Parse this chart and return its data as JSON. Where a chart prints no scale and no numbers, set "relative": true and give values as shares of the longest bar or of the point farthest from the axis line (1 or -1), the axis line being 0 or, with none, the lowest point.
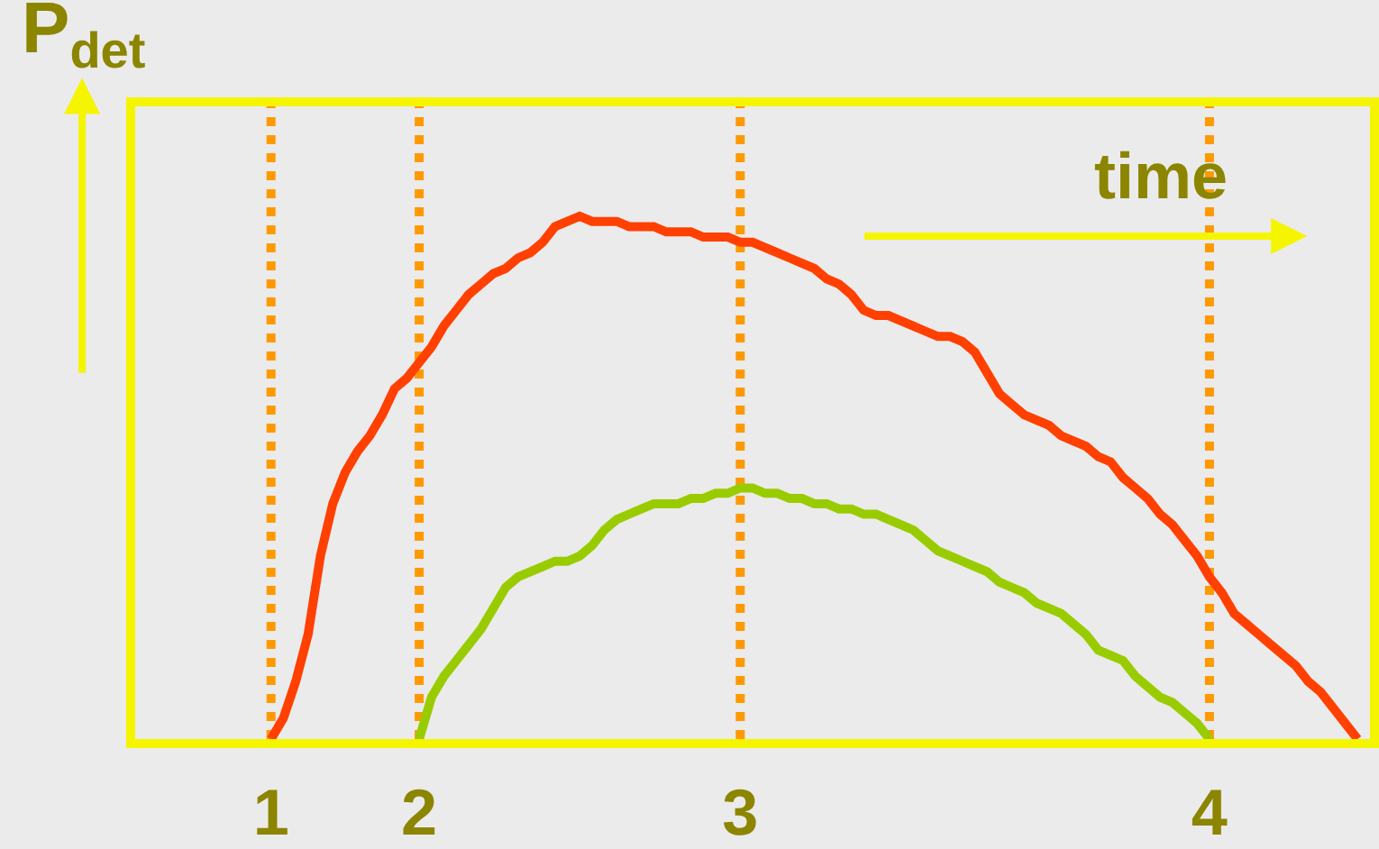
{
  "chart_data": {
    "type": "line",
    "relative": true,
    "ylabel": "P$_{det}$",
    "marker": "none",
    "line_style": "solid",
    "annotations": [
      "time"
    ],
    "categories": [
      null,
      null,
      null,
      null,
      null,
      null,
      null,
      null,
      null,
      null,
      null,
      "1",
      null,
      null,
      null,
      null,
      null,
      null,
      null,
      null,
      null,
      null,
      null,
      "2",
      null,
      null,
      null,
      null,
      null,
      null,
      null,
      null,
      null,
      null,
      null,
      null,
      null,
      null,
      null,
      null,
      null,
      null,
      null,
      null,
      null,
      null,
      null,
      null,
      null,
      "3",
      null,
      null,
      null,
      null,
      null,
      null,
      null,
      null,
      null,
      null,
      null,
      null,
      null,
      null,
      null,
      null,
      null,
      null,
      null,
      null,
      null,
      null,
      null,
      null,
      null,
      null,
      null,
      null,
      null,
      null,
      null,
      null,
      null,
      null,
      null,
      null,
      null,
      "4",
      null,
      null,
      null,
      null,
      null,
      null,
      null,
      null,
      null,
      null,
      null,
      null
    ],
    "ref_lines": [
      {
        "axis": "x",
        "value": "1",
        "color": "#ff9900",
        "line_style": "dotted"
      },
      {
        "axis": "x",
        "value": "2",
        "color": "#ff9900",
        "line_style": "dotted"
      },
      {
        "axis": "x",
        "value": "3",
        "color": "#ff9900",
        "line_style": "dotted"
      },
      {
        "axis": "x",
        "value": "4",
        "color": "#ff9900",
        "line_style": "dotted"
      }
    ],
    "series": [
      {
        "color": "#ff4000",
        "values": [
          null,
          null,
          null,
          null,
          null,
          null,
          null,
          null,
          null,
          null,
          null,
          0,
          0.04,
          0.11,
          0.2,
          0.35,
          0.45,
          0.51,
          0.55,
          0.58,
          0.62,
          0.67,
          0.69,
          0.72,
          0.75,
          0.79,
          0.82,
          0.85,
          0.87,
          0.89,
          0.9,
          0.92,
          0.93,
          0.95,
          0.98,
          0.99,
          1,
          0.99,
          0.99,
          0.99,
          0.98,
          0.98,
          0.98,
          0.97,
          0.97,
          0.97,
          0.96,
          0.96,
          0.96,
          0.95,
          0.95,
          0.94,
          0.93,
          0.92,
          0.91,
          0.9,
          0.88,
          0.87,
          0.85,
          0.82,
          0.81,
          0.81,
          0.8,
          0.79,
          0.78,
          0.77,
          0.77,
          0.76,
          0.74,
          0.7,
          0.66,
          0.64,
          0.62,
          0.61,
          0.6,
          0.58,
          0.57,
          0.56,
          0.54,
          0.53,
          0.5,
          0.48,
          0.46,
          0.43,
          0.41,
          0.38,
          0.35,
          0.31,
          0.28,
          0.24,
          0.22,
          0.2,
          0.18,
          0.16,
          0.14,
          0.11,
          0.09,
          0.06,
          0.03,
          0
        ]
      },
      {
        "color": "#99cc00",
        "values": [
          null,
          null,
          null,
          null,
          null,
          null,
          null,
          null,
          null,
          null,
          null,
          null,
          null,
          null,
          null,
          null,
          null,
          null,
          null,
          null,
          null,
          null,
          null,
          0,
          0.08,
          0.12,
          0.15,
          0.18,
          0.21,
          0.25,
          0.29,
          0.31,
          0.32,
          0.33,
          0.34,
          0.34,
          0.35,
          0.37,
          0.4,
          0.42,
          0.43,
          0.44,
          0.45,
          0.45,
          0.45,
          0.46,
          0.46,
          0.47,
          0.47,
          0.48,
          0.48,
          0.47,
          0.47,
          0.46,
          0.46,
          0.45,
          0.45,
          0.44,
          0.44,
          0.43,
          0.43,
          0.42,
          0.41,
          0.4,
          0.38,
          0.36,
          0.35,
          0.34,
          0.33,
          0.32,
          0.3,
          0.29,
          0.28,
          0.26,
          0.25,
          0.24,
          0.22,
          0.2,
          0.17,
          0.16,
          0.15,
          0.12,
          0.1,
          0.08,
          0.07,
          0.05,
          0.03,
          0,
          null,
          null,
          null,
          null,
          null,
          null,
          null,
          null,
          null,
          null,
          null,
          null
        ]
      }
    ]
  }
}
